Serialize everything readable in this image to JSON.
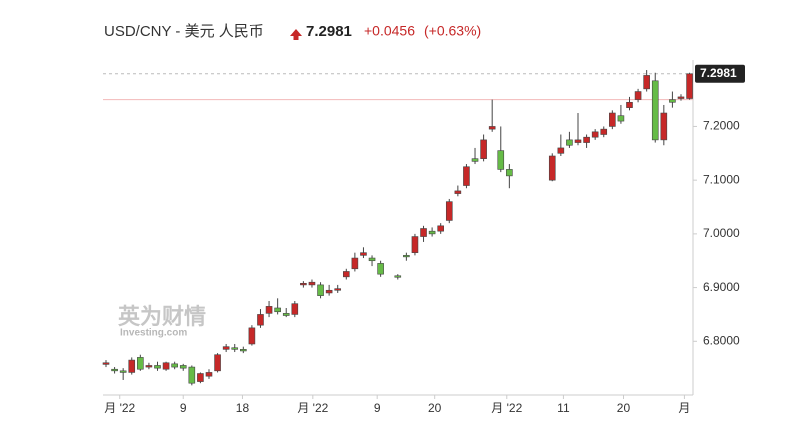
{
  "chart_data": {
    "type": "candlestick",
    "title": "USD/CNY - 美元 人民币",
    "change": "+0.0456",
    "change_percent": "(+0.63%)",
    "last_price": {
      "value": 7.2981,
      "label": "7.2981"
    },
    "reference_line": 7.25,
    "watermark": "英为财情",
    "watermark_sub": "Investing.com",
    "up_color": "#c62828",
    "down_color": "#66bb47",
    "x": [
      0,
      1,
      2,
      3,
      4,
      5,
      6,
      7,
      8,
      9,
      10,
      11,
      12,
      13,
      14,
      15,
      16,
      17,
      18,
      19,
      20,
      21,
      22,
      23,
      24,
      25,
      26,
      27,
      28,
      29,
      30,
      31,
      32,
      34,
      35,
      36,
      37,
      38,
      39,
      40,
      41,
      42,
      43,
      44,
      45,
      46,
      47,
      52,
      53,
      54,
      55,
      56,
      57,
      58,
      59,
      60,
      61,
      62,
      63,
      64,
      65,
      66,
      67,
      68
    ],
    "open": [
      6.757,
      6.748,
      6.745,
      6.742,
      6.77,
      6.752,
      6.755,
      6.748,
      6.758,
      6.755,
      6.752,
      6.725,
      6.735,
      6.745,
      6.785,
      6.788,
      6.785,
      6.795,
      6.83,
      6.852,
      6.862,
      6.852,
      6.85,
      6.905,
      6.905,
      6.905,
      6.89,
      6.895,
      6.92,
      6.935,
      6.96,
      6.955,
      6.945,
      6.922,
      6.96,
      6.965,
      6.995,
      7.005,
      7.005,
      7.025,
      7.075,
      7.09,
      7.14,
      7.14,
      7.195,
      7.155,
      7.12,
      7.1,
      7.15,
      7.175,
      7.17,
      7.17,
      7.18,
      7.185,
      7.2,
      7.22,
      7.235,
      7.25,
      7.27,
      7.285,
      7.175,
      7.25,
      7.252,
      7.252
    ],
    "high": [
      6.765,
      6.752,
      6.75,
      6.77,
      6.775,
      6.76,
      6.762,
      6.762,
      6.762,
      6.758,
      6.755,
      6.742,
      6.748,
      6.778,
      6.795,
      6.795,
      6.79,
      6.83,
      6.86,
      6.875,
      6.88,
      6.862,
      6.875,
      6.912,
      6.915,
      6.91,
      6.905,
      6.905,
      6.935,
      6.965,
      6.975,
      6.96,
      6.95,
      6.925,
      6.965,
      7.0,
      7.015,
      7.012,
      7.02,
      7.065,
      7.09,
      7.13,
      7.16,
      7.185,
      7.25,
      7.2,
      7.13,
      7.15,
      7.185,
      7.19,
      7.225,
      7.185,
      7.195,
      7.2,
      7.23,
      7.24,
      7.255,
      7.27,
      7.305,
      7.3,
      7.24,
      7.265,
      7.26,
      7.3
    ],
    "low": [
      6.752,
      6.74,
      6.728,
      6.738,
      6.745,
      6.748,
      6.745,
      6.745,
      6.748,
      6.745,
      6.718,
      6.722,
      6.73,
      6.742,
      6.78,
      6.78,
      6.778,
      6.792,
      6.825,
      6.845,
      6.85,
      6.845,
      6.845,
      6.9,
      6.9,
      6.88,
      6.885,
      6.89,
      6.915,
      6.93,
      6.955,
      6.94,
      6.92,
      6.915,
      6.95,
      6.96,
      6.985,
      6.995,
      7.0,
      7.02,
      7.07,
      7.085,
      7.13,
      7.135,
      7.19,
      7.115,
      7.085,
      7.098,
      7.145,
      7.16,
      7.165,
      7.16,
      7.175,
      7.18,
      7.195,
      7.205,
      7.23,
      7.245,
      7.265,
      7.17,
      7.165,
      7.235,
      7.248,
      7.25
    ],
    "close": [
      6.76,
      6.745,
      6.742,
      6.765,
      6.748,
      6.755,
      6.75,
      6.76,
      6.752,
      6.75,
      6.722,
      6.74,
      6.742,
      6.775,
      6.79,
      6.785,
      6.782,
      6.825,
      6.85,
      6.865,
      6.855,
      6.848,
      6.87,
      6.908,
      6.91,
      6.885,
      6.895,
      6.898,
      6.93,
      6.955,
      6.965,
      6.95,
      6.925,
      6.92,
      6.958,
      6.995,
      7.01,
      7.0,
      7.015,
      7.06,
      7.08,
      7.125,
      7.135,
      7.175,
      7.2,
      7.12,
      7.108,
      7.145,
      7.16,
      7.165,
      7.175,
      7.18,
      7.19,
      7.195,
      7.225,
      7.21,
      7.245,
      7.265,
      7.295,
      7.175,
      7.225,
      7.245,
      7.255,
      7.298
    ],
    "xlim": [
      -0.35,
      68.4
    ],
    "ylim": [
      6.7,
      7.32
    ],
    "xticks": [
      {
        "value": 1.6,
        "label": "月 '22"
      },
      9,
      {
        "value": 15.9,
        "label": "18"
      },
      {
        "value": 24.1,
        "label": "月 '22"
      },
      {
        "value": 31.6,
        "label": "9"
      },
      {
        "value": 38.3,
        "label": "20"
      },
      {
        "value": 46.7,
        "label": "月 '22"
      },
      {
        "value": 53.3,
        "label": "11"
      },
      {
        "value": 60.3,
        "label": "20"
      },
      {
        "value": 67.4,
        "label": "月"
      }
    ],
    "yticks": [
      {
        "value": 6.8,
        "label": "6.8000"
      },
      {
        "value": 6.9,
        "label": "6.9000"
      },
      {
        "value": 7.0,
        "label": "7.0000"
      },
      {
        "value": 7.1,
        "label": "7.1000"
      },
      {
        "value": 7.2,
        "label": "7.2000"
      }
    ]
  }
}
